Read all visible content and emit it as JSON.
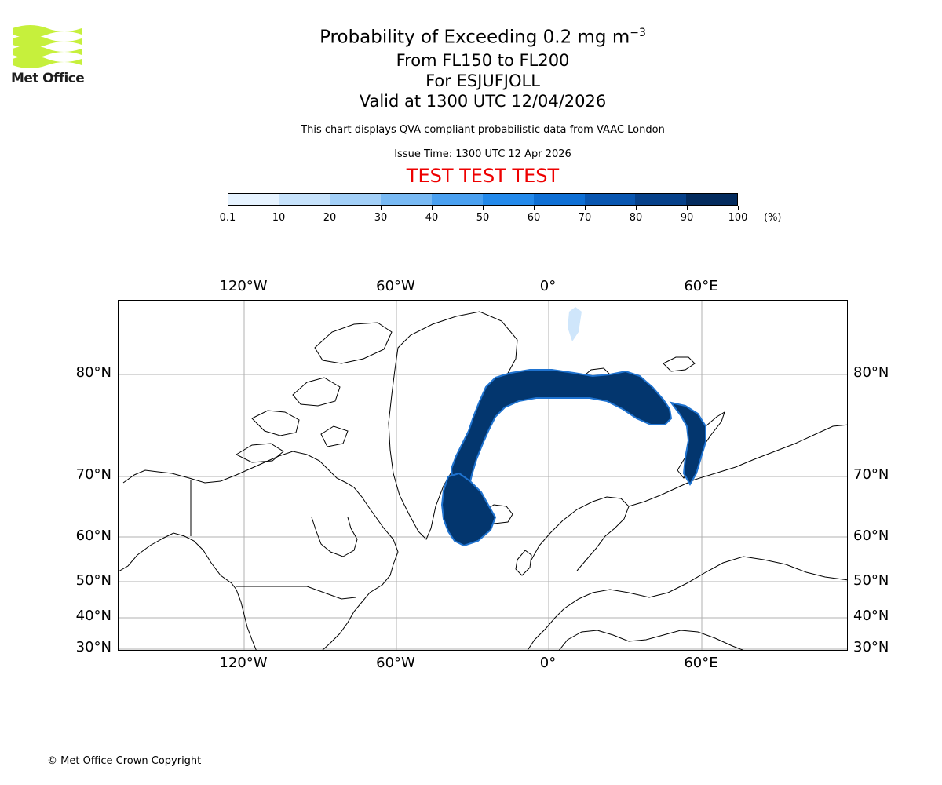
{
  "logo": {
    "text": "Met Office"
  },
  "title": {
    "main": "Probability of Exceeding 0.2 mg m",
    "main_sup": "−3",
    "levels": "From FL150 to FL200",
    "volcano": "For ESJUFJOLL",
    "valid": "Valid at 1300 UTC 12/04/2026",
    "description": "This chart displays QVA compliant probabilistic data from VAAC London",
    "issue_time": "Issue Time: 1300 UTC 12 Apr 2026",
    "test_banner": "TEST TEST TEST"
  },
  "colorbar": {
    "ticks": [
      "0.1",
      "10",
      "20",
      "30",
      "40",
      "50",
      "60",
      "70",
      "80",
      "90",
      "100"
    ],
    "unit": "(%)",
    "colors": [
      "#e6f3ff",
      "#c6e2fb",
      "#a2cff7",
      "#78b9f3",
      "#4aa0f0",
      "#2389ea",
      "#0e6fd4",
      "#0956b0",
      "#06418a",
      "#032b5e"
    ]
  },
  "map": {
    "lon_labels": [
      "120°W",
      "60°W",
      "0°",
      "60°E"
    ],
    "lat_labels": [
      "80°N",
      "70°N",
      "60°N",
      "50°N",
      "40°N",
      "30°N"
    ],
    "plume_color": "#03366e",
    "grid_color": "#b0b0b0"
  },
  "footer": {
    "copyright": "© Met Office Crown Copyright"
  }
}
